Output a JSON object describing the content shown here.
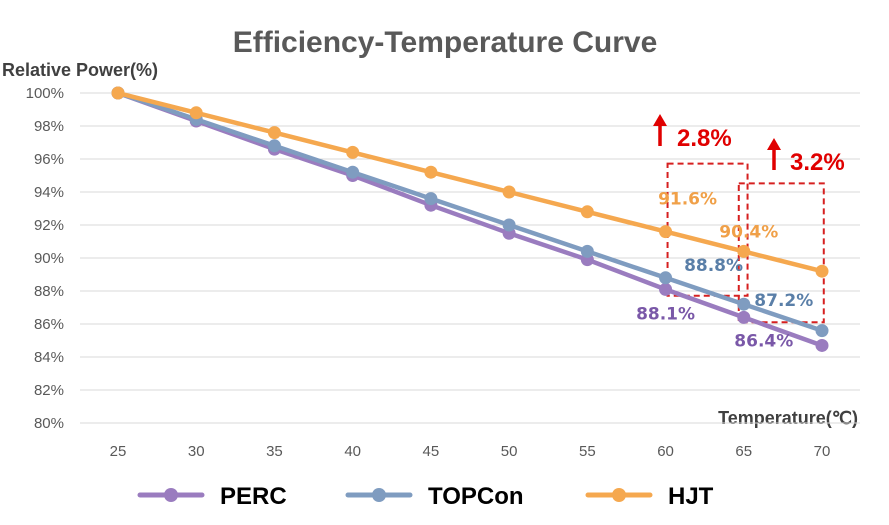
{
  "chart_data": {
    "type": "line",
    "title": "Efficiency-Temperature Curve",
    "ylabel": "Relative Power(%)",
    "xlabel": "Temperature(℃)",
    "x": [
      25,
      30,
      35,
      40,
      45,
      50,
      55,
      60,
      65,
      70
    ],
    "ylim": [
      80,
      100
    ],
    "ytick_step": 2,
    "ytick_suffix": "%",
    "grid": true,
    "legend_position": "bottom",
    "series": [
      {
        "name": "PERC",
        "color": "#9a7cbf",
        "values": [
          100,
          98.3,
          96.6,
          95.0,
          93.2,
          91.5,
          89.9,
          88.1,
          86.4,
          84.7
        ]
      },
      {
        "name": "TOPCon",
        "color": "#7f9cc0",
        "values": [
          100,
          98.4,
          96.8,
          95.2,
          93.6,
          92.0,
          90.4,
          88.8,
          87.2,
          85.6
        ]
      },
      {
        "name": "HJT",
        "color": "#f5a84f",
        "values": [
          100,
          98.8,
          97.6,
          96.4,
          95.2,
          94.0,
          92.8,
          91.6,
          90.4,
          89.2
        ]
      }
    ],
    "data_labels": [
      {
        "text": "91.6%",
        "series": "HJT",
        "x": 60,
        "color": "#f0a048"
      },
      {
        "text": "88.8%",
        "series": "TOPCon",
        "x": 60,
        "color": "#5a7fa8"
      },
      {
        "text": "88.1%",
        "series": "PERC",
        "x": 60,
        "color": "#7a58a8"
      },
      {
        "text": "90.4%",
        "series": "HJT",
        "x": 65,
        "color": "#f0a048"
      },
      {
        "text": "87.2%",
        "series": "TOPCon",
        "x": 65,
        "color": "#5a7fa8"
      },
      {
        "text": "86.4%",
        "series": "PERC",
        "x": 65,
        "color": "#7a58a8"
      }
    ],
    "annotations": [
      {
        "text": "2.8%",
        "at_x": 60,
        "color": "#e00000"
      },
      {
        "text": "3.2%",
        "at_x": 65,
        "color": "#e00000"
      }
    ]
  }
}
